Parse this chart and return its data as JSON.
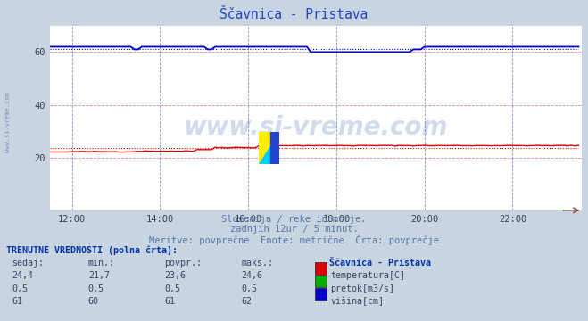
{
  "title": "Ščavnica - Pristava",
  "subtitle1": "Slovenija / reke in morje.",
  "subtitle2": "zadnjih 12ur / 5 minut.",
  "subtitle3": "Meritve: povprečne  Enote: metrične  Črta: povprečje",
  "xlim_hours": [
    11.5,
    23.58
  ],
  "ylim": [
    0,
    70
  ],
  "yticks": [
    20,
    40,
    60
  ],
  "xtick_labels": [
    "12:00",
    "14:00",
    "16:00",
    "18:00",
    "20:00",
    "22:00"
  ],
  "xtick_positions": [
    12,
    14,
    16,
    18,
    20,
    22
  ],
  "fig_bg_color": "#c8d4e0",
  "plot_bg_color": "#ffffff",
  "grid_color_h": "#dd8888",
  "grid_color_v": "#8888dd",
  "temp_color": "#dd0000",
  "flow_color": "#00aa00",
  "height_color": "#0000cc",
  "watermark": "www.si-vreme.com",
  "watermark_color": "#4477bb",
  "watermark_alpha": 0.25,
  "table_header": "TRENUTNE VREDNOSTI (polna črta):",
  "col_headers": [
    "sedaj:",
    "min.:",
    "povpr.:",
    "maks.:"
  ],
  "row1": [
    "24,4",
    "21,7",
    "23,6",
    "24,6",
    "temperatura[C]"
  ],
  "row2": [
    "0,5",
    "0,5",
    "0,5",
    "0,5",
    "pretok[m3/s]"
  ],
  "row3": [
    "61",
    "60",
    "61",
    "62",
    "višina[cm]"
  ],
  "station_label": "Ščavnica - Pristava",
  "temp_avg": 23.6,
  "height_avg": 61.0,
  "n_points": 145,
  "x_start": 11.5,
  "x_end": 23.5
}
